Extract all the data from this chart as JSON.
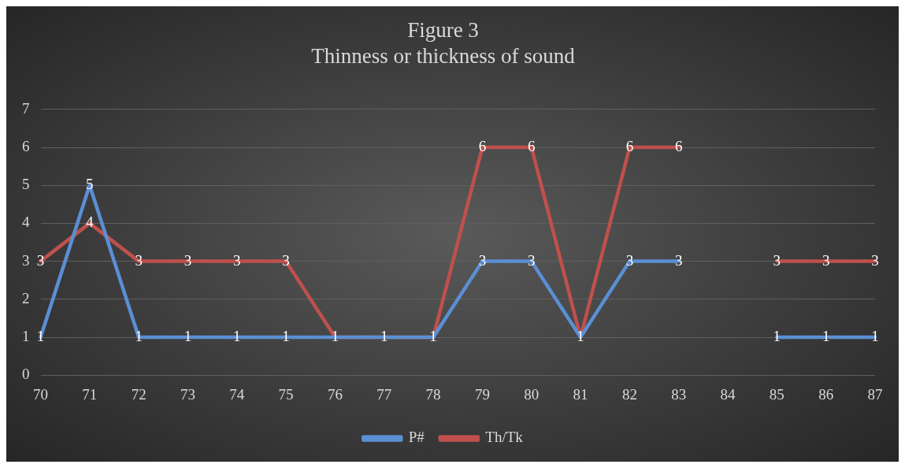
{
  "chart_data": {
    "type": "line",
    "title": "Figure 3",
    "subtitle": "Thinness or thickness of sound",
    "categories": [
      "70",
      "71",
      "72",
      "73",
      "74",
      "75",
      "76",
      "77",
      "78",
      "79",
      "80",
      "81",
      "82",
      "83",
      "84",
      "85",
      "86",
      "87"
    ],
    "series": [
      {
        "name": "P#",
        "color": "#5b8fd4",
        "values": [
          1,
          5,
          1,
          1,
          1,
          1,
          1,
          1,
          1,
          3,
          3,
          1,
          3,
          3,
          null,
          1,
          1,
          1
        ]
      },
      {
        "name": "Th/Tk",
        "color": "#c0504d",
        "values": [
          3,
          4,
          3,
          3,
          3,
          3,
          1,
          1,
          1,
          6,
          6,
          1,
          6,
          6,
          null,
          3,
          3,
          3
        ],
        "value_labels": [
          "3",
          "4",
          "3",
          "3",
          "3",
          "3",
          null,
          null,
          null,
          "6",
          "6",
          null,
          "6",
          "6",
          null,
          "3",
          "3",
          "3"
        ]
      }
    ],
    "ylim": [
      0,
      7
    ],
    "yticks": [
      0,
      1,
      2,
      3,
      4,
      5,
      6,
      7
    ],
    "grid": "y",
    "legend": "bottom",
    "data_labels": true,
    "marker": "none",
    "line_style": "solid"
  }
}
